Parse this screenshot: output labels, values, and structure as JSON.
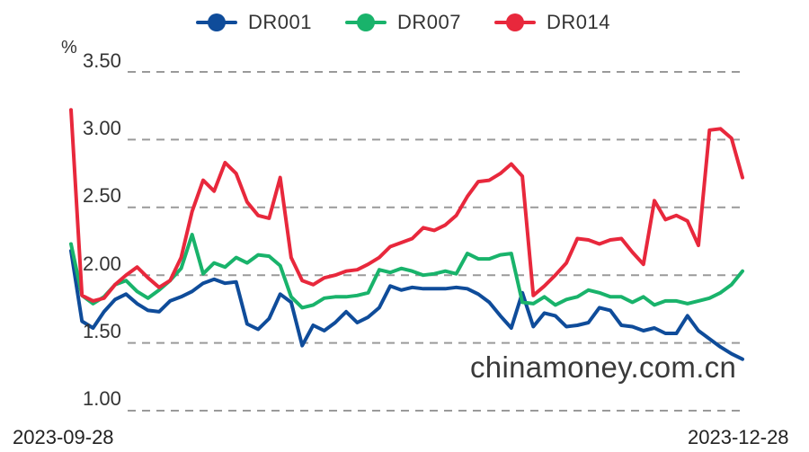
{
  "chart_data": {
    "type": "line",
    "unit_label": "%",
    "yticks": [
      "3.50",
      "3.00",
      "2.50",
      "2.00",
      "1.50",
      "1.00"
    ],
    "ylim": [
      1.0,
      3.5
    ],
    "x_range_labels": [
      "2023-09-28",
      "2023-12-28"
    ],
    "grid": true,
    "legend_position": "top-center",
    "watermark": "chinamoney.com.cn",
    "series": [
      {
        "name": "DR001",
        "color": "#0f4c9a",
        "values": [
          2.18,
          1.66,
          1.61,
          1.73,
          1.82,
          1.86,
          1.79,
          1.74,
          1.73,
          1.81,
          1.84,
          1.88,
          1.94,
          1.97,
          1.94,
          1.95,
          1.64,
          1.6,
          1.68,
          1.86,
          1.8,
          1.48,
          1.63,
          1.59,
          1.65,
          1.73,
          1.65,
          1.69,
          1.76,
          1.92,
          1.89,
          1.91,
          1.9,
          1.9,
          1.9,
          1.91,
          1.9,
          1.86,
          1.8,
          1.7,
          1.61,
          1.87,
          1.62,
          1.72,
          1.7,
          1.62,
          1.63,
          1.65,
          1.76,
          1.74,
          1.63,
          1.62,
          1.59,
          1.61,
          1.57,
          1.57,
          1.7,
          1.59,
          1.53,
          1.47,
          1.42,
          1.38
        ]
      },
      {
        "name": "DR007",
        "color": "#19b36b",
        "values": [
          2.23,
          1.85,
          1.79,
          1.84,
          1.93,
          1.96,
          1.88,
          1.83,
          1.89,
          1.96,
          2.05,
          2.3,
          2.01,
          2.09,
          2.06,
          2.13,
          2.09,
          2.15,
          2.14,
          2.07,
          1.84,
          1.76,
          1.78,
          1.83,
          1.84,
          1.84,
          1.85,
          1.87,
          2.04,
          2.02,
          2.05,
          2.03,
          2.0,
          2.01,
          2.03,
          2.01,
          2.16,
          2.12,
          2.12,
          2.15,
          2.16,
          1.8,
          1.79,
          1.84,
          1.78,
          1.82,
          1.84,
          1.89,
          1.87,
          1.84,
          1.84,
          1.8,
          1.84,
          1.78,
          1.81,
          1.81,
          1.79,
          1.81,
          1.83,
          1.87,
          1.93,
          2.03
        ]
      },
      {
        "name": "DR014",
        "color": "#e8283c",
        "values": [
          3.22,
          1.85,
          1.81,
          1.83,
          1.93,
          2.0,
          2.06,
          1.98,
          1.91,
          1.96,
          2.13,
          2.47,
          2.7,
          2.62,
          2.83,
          2.75,
          2.54,
          2.44,
          2.42,
          2.72,
          2.13,
          1.96,
          1.93,
          1.98,
          2.0,
          2.03,
          2.04,
          2.08,
          2.13,
          2.21,
          2.24,
          2.27,
          2.35,
          2.33,
          2.37,
          2.44,
          2.58,
          2.69,
          2.7,
          2.75,
          2.82,
          2.73,
          1.85,
          1.92,
          2.0,
          2.09,
          2.27,
          2.26,
          2.23,
          2.26,
          2.27,
          2.17,
          2.08,
          2.55,
          2.41,
          2.44,
          2.4,
          2.22,
          3.07,
          3.08,
          3.01,
          2.72
        ]
      }
    ]
  }
}
